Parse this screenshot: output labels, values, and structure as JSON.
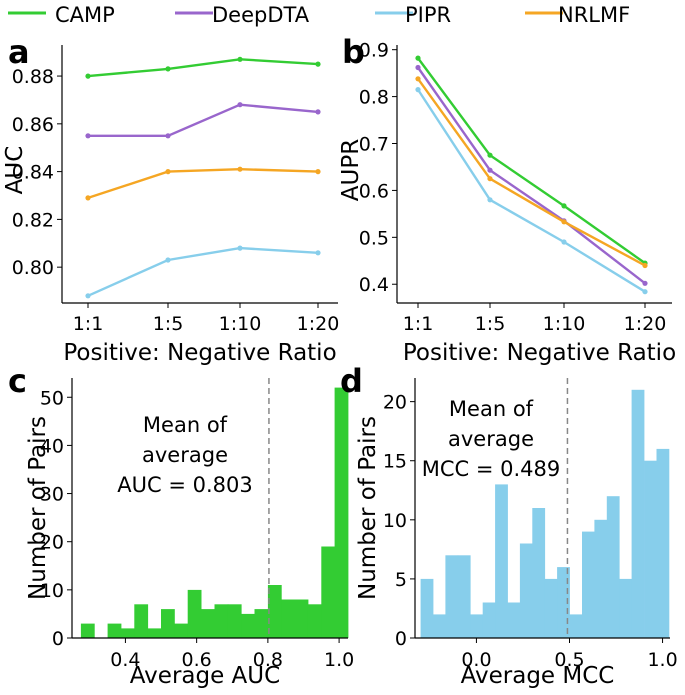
{
  "legend": {
    "items": [
      {
        "name": "CAMP",
        "color": "#33cc33"
      },
      {
        "name": "DeepDTA",
        "color": "#9966cc"
      },
      {
        "name": "PIPR",
        "color": "#87ceeb"
      },
      {
        "name": "NRLMF",
        "color": "#f5a623"
      }
    ]
  },
  "chart_data": [
    {
      "panel": "a",
      "type": "line",
      "categories": [
        "1:1",
        "1:5",
        "1:10",
        "1:20"
      ],
      "xlabel": "Positive: Negative Ratio",
      "ylabel": "AUC",
      "ylim": [
        0.785,
        0.893
      ],
      "yticks": [
        "0.80",
        "0.82",
        "0.84",
        "0.86",
        "0.88"
      ],
      "series": [
        {
          "name": "CAMP",
          "color": "#33cc33",
          "values": [
            0.88,
            0.883,
            0.887,
            0.885
          ]
        },
        {
          "name": "DeepDTA",
          "color": "#9966cc",
          "values": [
            0.855,
            0.855,
            0.868,
            0.865
          ]
        },
        {
          "name": "NRLMF",
          "color": "#f5a623",
          "values": [
            0.829,
            0.84,
            0.841,
            0.84
          ]
        },
        {
          "name": "PIPR",
          "color": "#87ceeb",
          "values": [
            0.788,
            0.803,
            0.808,
            0.806
          ]
        }
      ]
    },
    {
      "panel": "b",
      "type": "line",
      "categories": [
        "1:1",
        "1:5",
        "1:10",
        "1:20"
      ],
      "xlabel": "Positive: Negative Ratio",
      "ylabel": "AUPR",
      "ylim": [
        0.36,
        0.91
      ],
      "yticks": [
        "0.4",
        "0.5",
        "0.6",
        "0.7",
        "0.8",
        "0.9"
      ],
      "series": [
        {
          "name": "CAMP",
          "color": "#33cc33",
          "values": [
            0.882,
            0.675,
            0.567,
            0.445
          ]
        },
        {
          "name": "DeepDTA",
          "color": "#9966cc",
          "values": [
            0.862,
            0.643,
            0.535,
            0.402
          ]
        },
        {
          "name": "NRLMF",
          "color": "#f5a623",
          "values": [
            0.838,
            0.625,
            0.533,
            0.44
          ]
        },
        {
          "name": "PIPR",
          "color": "#87ceeb",
          "values": [
            0.815,
            0.58,
            0.49,
            0.384
          ]
        }
      ]
    },
    {
      "panel": "c",
      "type": "bar",
      "title": "",
      "xlabel": "Average AUC",
      "ylabel": "Number of  Pairs",
      "xlim": [
        0.25,
        1.025
      ],
      "ylim": [
        0,
        54
      ],
      "xticks": [
        "0.4",
        "0.6",
        "0.8",
        "1.0"
      ],
      "yticks": [
        "0",
        "10",
        "20",
        "30",
        "40",
        "50"
      ],
      "color": "#33cc33",
      "bin_start": 0.275,
      "bin_width": 0.0375,
      "values": [
        3,
        0,
        3,
        2,
        7,
        2,
        6,
        3,
        10,
        6,
        7,
        7,
        5,
        6,
        11,
        8,
        8,
        7,
        19,
        52
      ],
      "mean_line": 0.803,
      "annotation": [
        "Mean of",
        "average",
        "AUC = 0.803"
      ]
    },
    {
      "panel": "d",
      "type": "bar",
      "title": "",
      "xlabel": "Average MCC",
      "ylabel": "Number of  Pairs",
      "xlim": [
        -0.33,
        1.04
      ],
      "ylim": [
        0,
        22
      ],
      "xticks": [
        "0.0",
        "0.5",
        "1.0"
      ],
      "yticks": [
        "0",
        "5",
        "10",
        "15",
        "20"
      ],
      "color": "#87ceeb",
      "bin_start": -0.3,
      "bin_width": 0.0667,
      "values": [
        5,
        2,
        7,
        7,
        2,
        3,
        13,
        3,
        8,
        11,
        5,
        6,
        2,
        9,
        10,
        12,
        5,
        21,
        15,
        16
      ],
      "mean_line": 0.489,
      "annotation": [
        "Mean of",
        "average",
        "MCC = 0.489"
      ]
    }
  ],
  "panels": {
    "a": "a",
    "b": "b",
    "c": "c",
    "d": "d"
  }
}
